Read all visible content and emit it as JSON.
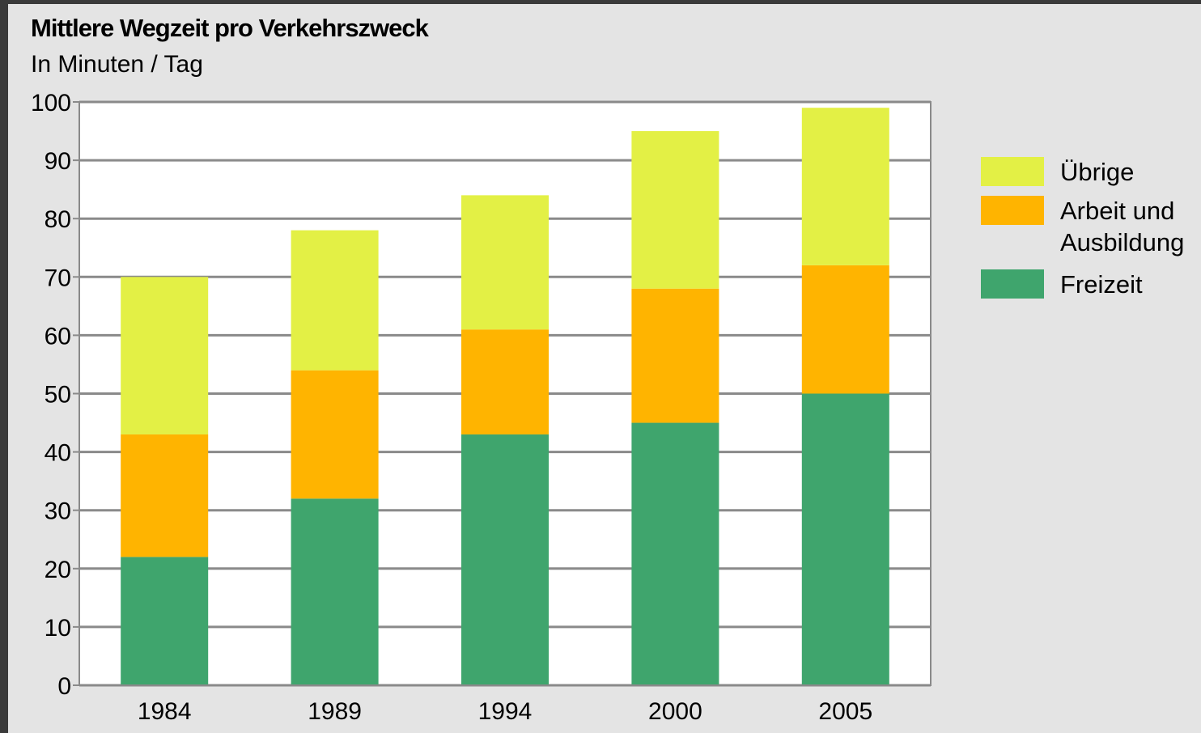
{
  "chart_data": {
    "type": "bar",
    "stacked": true,
    "title": "Mittlere Wegzeit pro Verkehrszweck",
    "subtitle": "In Minuten / Tag",
    "xlabel": "",
    "ylabel": "",
    "categories": [
      "1984",
      "1989",
      "1994",
      "2000",
      "2005"
    ],
    "series": [
      {
        "name": "Freizeit",
        "color": "#3fa56d",
        "values": [
          22,
          32,
          43,
          45,
          50
        ]
      },
      {
        "name": "Arbeit und Ausbildung",
        "color": "#ffb400",
        "values": [
          21,
          22,
          18,
          23,
          22
        ]
      },
      {
        "name": "Übrige",
        "color": "#e3f045",
        "values": [
          27,
          24,
          23,
          27,
          27
        ]
      }
    ],
    "legend_order": [
      {
        "name": "Übrige",
        "lines": [
          "Übrige"
        ]
      },
      {
        "name": "Arbeit und Ausbildung",
        "lines": [
          "Arbeit und",
          "Ausbildung"
        ]
      },
      {
        "name": "Freizeit",
        "lines": [
          "Freizeit"
        ]
      }
    ],
    "ylim": [
      0,
      100
    ],
    "yticks": [
      0,
      10,
      20,
      30,
      40,
      50,
      60,
      70,
      80,
      90,
      100
    ],
    "grid": true,
    "legend_position": "right"
  }
}
